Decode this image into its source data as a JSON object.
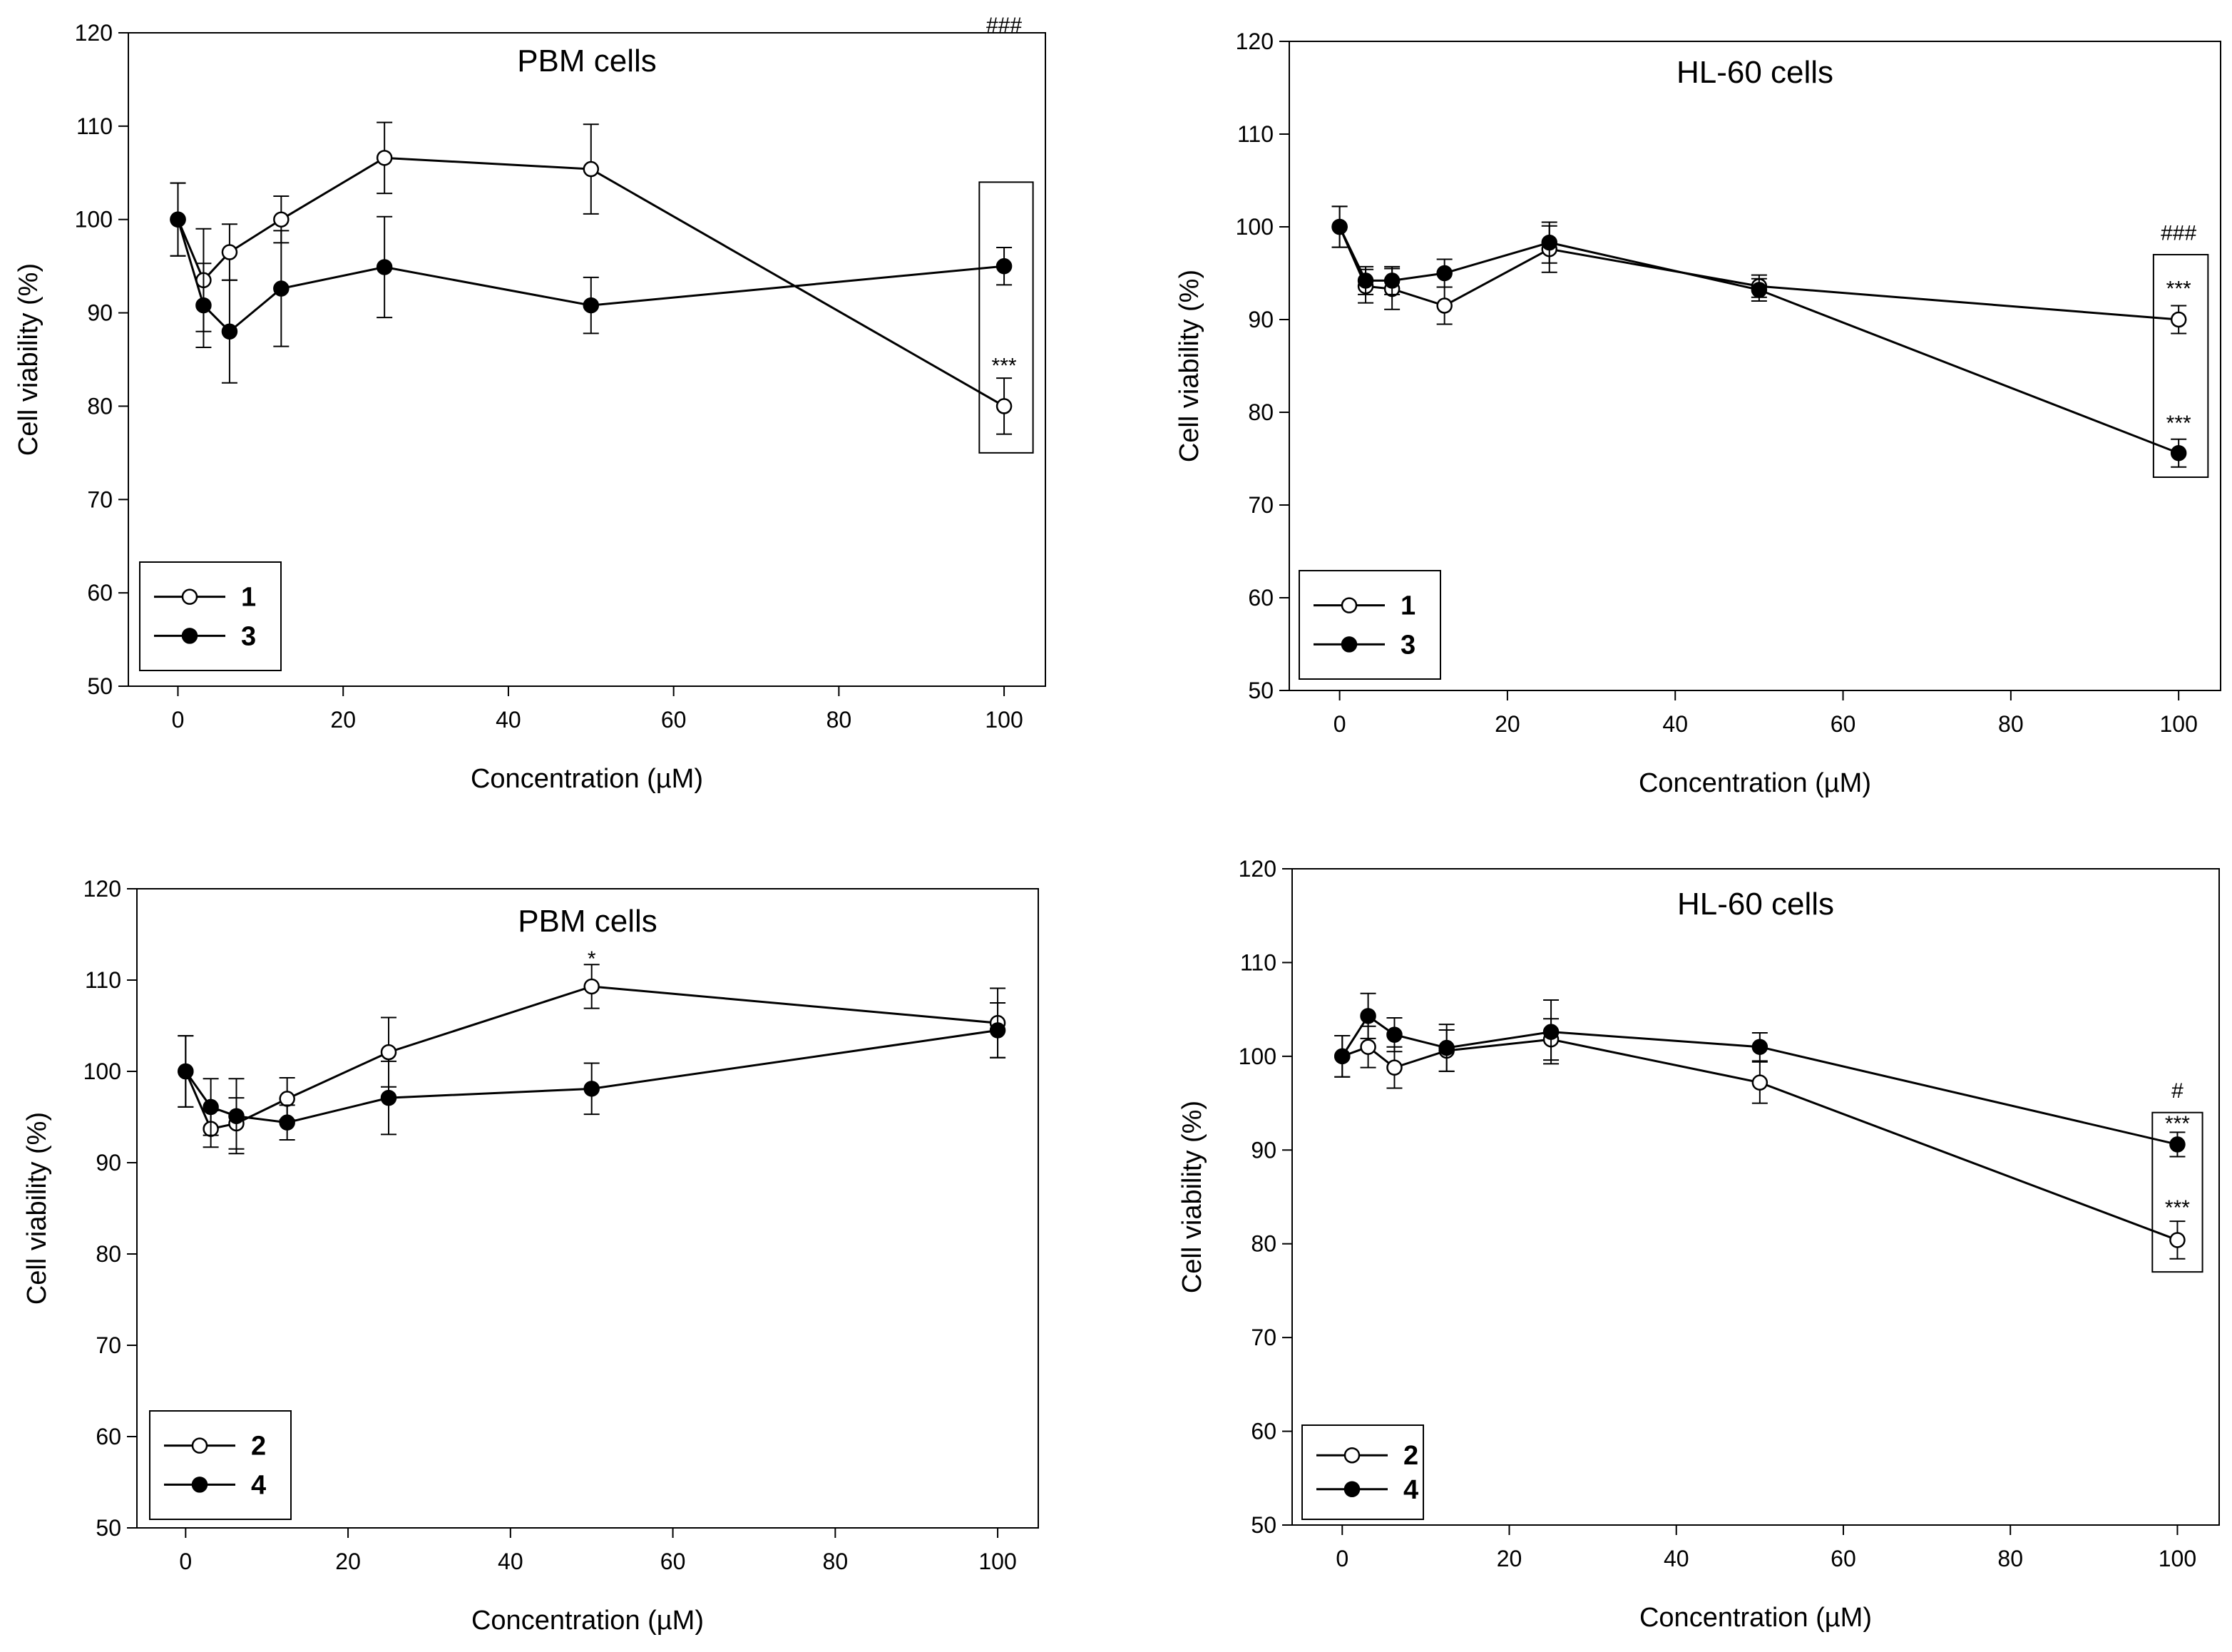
{
  "chart_data": [
    {
      "id": "a",
      "type": "line",
      "title": "PBM cells",
      "xlabel": "Concentration (µM)",
      "ylabel": "Cell viability (%)",
      "xlim": [
        -6,
        105
      ],
      "ylim": [
        50,
        120
      ],
      "xticks": [
        0,
        20,
        40,
        60,
        80,
        100
      ],
      "yticks": [
        50,
        60,
        70,
        80,
        90,
        100,
        110,
        120
      ],
      "legend": [
        "1",
        "3"
      ],
      "series": [
        {
          "name": "1",
          "marker": "open",
          "x": [
            0,
            3.1,
            6.25,
            12.5,
            25,
            50,
            100
          ],
          "y": [
            100,
            93.5,
            96.5,
            100,
            106.6,
            105.4,
            80
          ],
          "err": [
            3.9,
            5.5,
            3.0,
            2.5,
            3.8,
            4.8,
            3.0
          ]
        },
        {
          "name": "3",
          "marker": "filled",
          "x": [
            0,
            3.1,
            6.25,
            12.5,
            25,
            50,
            100
          ],
          "y": [
            100,
            90.8,
            88,
            92.6,
            94.9,
            90.8,
            95
          ],
          "err": [
            3.9,
            4.5,
            5.5,
            6.2,
            5.4,
            3.0,
            2.0
          ]
        }
      ],
      "annotations": [
        {
          "text": "###",
          "x": 100,
          "y": 121
        },
        {
          "text": "***",
          "x": 100,
          "y": 84.5
        }
      ],
      "highlight_box": {
        "x": [
          97,
          103.5
        ],
        "y": [
          75,
          104
        ]
      }
    },
    {
      "id": "b",
      "type": "line",
      "title": "HL-60 cells",
      "xlabel": "Concentration (µM)",
      "ylabel": "Cell viability (%)",
      "xlim": [
        -6,
        105
      ],
      "ylim": [
        50,
        120
      ],
      "xticks": [
        0,
        20,
        40,
        60,
        80,
        100
      ],
      "yticks": [
        50,
        60,
        70,
        80,
        90,
        100,
        110,
        120
      ],
      "legend": [
        "1",
        "3"
      ],
      "series": [
        {
          "name": "1",
          "marker": "open",
          "x": [
            0,
            3.1,
            6.25,
            12.5,
            25,
            50,
            100
          ],
          "y": [
            100,
            93.6,
            93.3,
            91.5,
            97.6,
            93.6,
            90
          ],
          "err": [
            2.2,
            1.8,
            2.2,
            2.0,
            2.5,
            1.2,
            1.5
          ]
        },
        {
          "name": "3",
          "marker": "filled",
          "x": [
            0,
            3.1,
            6.25,
            12.5,
            25,
            50,
            100
          ],
          "y": [
            100,
            94.2,
            94.2,
            95,
            98.3,
            93.2,
            75.6
          ],
          "err": [
            2.2,
            1.5,
            1.5,
            1.5,
            2.2,
            1.2,
            1.5
          ]
        }
      ],
      "annotations": [
        {
          "text": "###",
          "x": 100,
          "y": 99.5
        },
        {
          "text": "***",
          "x": 100,
          "y": 93.5
        },
        {
          "text": "***",
          "x": 100,
          "y": 79
        }
      ],
      "highlight_box": {
        "x": [
          97,
          103.5
        ],
        "y": [
          73,
          97
        ]
      }
    },
    {
      "id": "c",
      "type": "line",
      "title": "PBM cells",
      "xlabel": "Concentration (µM)",
      "ylabel": "Cell viability (%)",
      "xlim": [
        -6,
        105
      ],
      "ylim": [
        50,
        120
      ],
      "xticks": [
        0,
        20,
        40,
        60,
        80,
        100
      ],
      "yticks": [
        50,
        60,
        70,
        80,
        90,
        100,
        110,
        120
      ],
      "legend": [
        "2",
        "4"
      ],
      "series": [
        {
          "name": "2",
          "marker": "open",
          "x": [
            0,
            3.1,
            6.25,
            12.5,
            25,
            50,
            100
          ],
          "y": [
            100,
            93.7,
            94.3,
            97,
            102.1,
            109.3,
            105.3
          ],
          "err": [
            3.9,
            2.0,
            2.8,
            2.3,
            3.8,
            2.4,
            3.8
          ]
        },
        {
          "name": "4",
          "marker": "filled",
          "x": [
            0,
            3.1,
            6.25,
            12.5,
            25,
            50,
            100
          ],
          "y": [
            100,
            96.1,
            95.1,
            94.4,
            97.1,
            98.1,
            104.5
          ],
          "err": [
            3.9,
            3.1,
            4.1,
            1.9,
            4.0,
            2.8,
            3.0
          ]
        }
      ],
      "annotations": [
        {
          "text": "*",
          "x": 50,
          "y": 112.5
        }
      ]
    },
    {
      "id": "d",
      "type": "line",
      "title": "HL-60 cells",
      "xlabel": "Concentration (µM)",
      "ylabel": "Cell viability (%)",
      "xlim": [
        -6,
        105
      ],
      "ylim": [
        50,
        120
      ],
      "xticks": [
        0,
        20,
        40,
        60,
        80,
        100
      ],
      "yticks": [
        50,
        60,
        70,
        80,
        90,
        100,
        110,
        120
      ],
      "legend": [
        "2",
        "4"
      ],
      "series": [
        {
          "name": "2",
          "marker": "open",
          "x": [
            0,
            3.1,
            6.25,
            12.5,
            25,
            50,
            100
          ],
          "y": [
            100,
            101,
            98.8,
            100.6,
            101.8,
            97.2,
            80.4
          ],
          "err": [
            2.2,
            2.2,
            2.2,
            2.2,
            2.2,
            2.2,
            2.0
          ]
        },
        {
          "name": "4",
          "marker": "filled",
          "x": [
            0,
            3.1,
            6.25,
            12.5,
            25,
            50,
            100
          ],
          "y": [
            100,
            104.3,
            102.3,
            100.9,
            102.6,
            101,
            90.6
          ],
          "err": [
            2.2,
            2.4,
            1.8,
            2.5,
            3.4,
            1.5,
            1.3
          ]
        }
      ],
      "annotations": [
        {
          "text": "#",
          "x": 100,
          "y": 96.5
        },
        {
          "text": "***",
          "x": 100,
          "y": 93
        },
        {
          "text": "***",
          "x": 100,
          "y": 84
        }
      ],
      "highlight_box": {
        "x": [
          97,
          103
        ],
        "y": [
          77,
          94
        ]
      }
    }
  ]
}
